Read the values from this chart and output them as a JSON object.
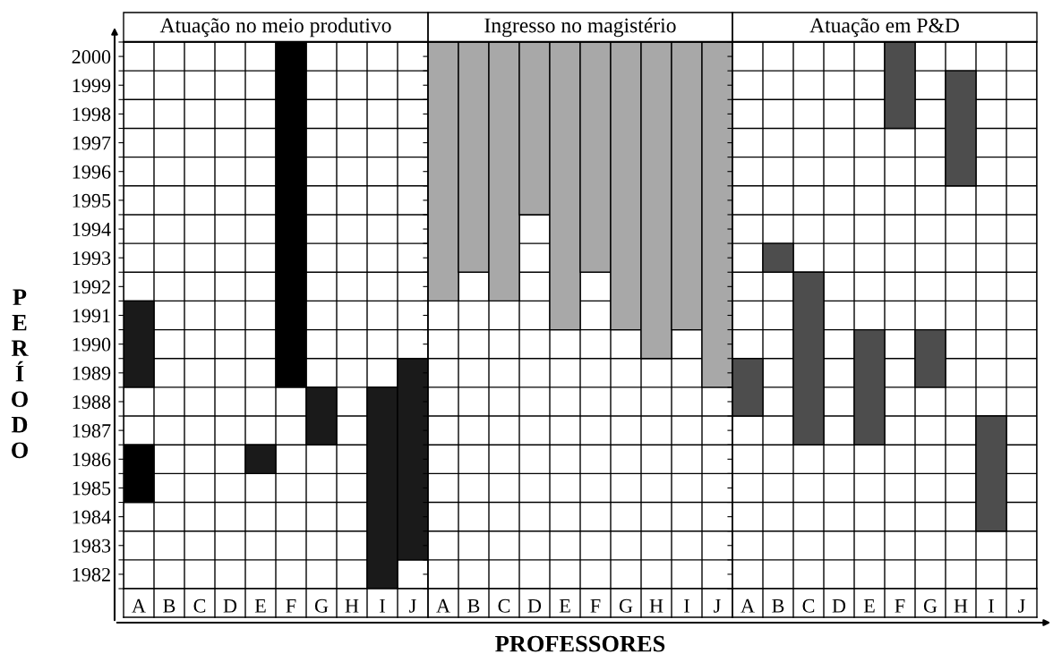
{
  "chart_data": [
    {
      "type": "bar",
      "title": "Atuação no meio produtivo",
      "ylabel": "PERÍODO",
      "categories": [
        "A",
        "B",
        "C",
        "D",
        "E",
        "F",
        "G",
        "H",
        "I",
        "J"
      ],
      "ylim": [
        1981.5,
        2000.5
      ],
      "grid": true,
      "yticks": [
        {
          "value": 1981.5,
          "label": null
        },
        1982,
        {
          "value": 1982.5,
          "label": null
        },
        1983,
        {
          "value": 1983.5,
          "label": null
        },
        1984,
        {
          "value": 1984.5,
          "label": null
        },
        1985,
        {
          "value": 1985.5,
          "label": null
        },
        1986,
        {
          "value": 1986.5,
          "label": null
        },
        1987,
        {
          "value": 1987.5,
          "label": null
        },
        1988,
        {
          "value": 1988.5,
          "label": null
        },
        1989,
        {
          "value": 1989.5,
          "label": null
        },
        1990,
        {
          "value": 1990.5,
          "label": null
        },
        1991,
        {
          "value": 1991.5,
          "label": null
        },
        1992,
        {
          "value": 1992.5,
          "label": null
        },
        1993,
        {
          "value": 1993.5,
          "label": null
        },
        1994,
        {
          "value": 1994.5,
          "label": null
        },
        1995,
        {
          "value": 1995.5,
          "label": null
        },
        1996,
        {
          "value": 1996.5,
          "label": null
        },
        1997,
        {
          "value": 1997.5,
          "label": null
        },
        1998,
        {
          "value": 1998.5,
          "label": null
        },
        1999,
        {
          "value": 1999.5,
          "label": null
        },
        2000,
        {
          "value": 2000.5,
          "label": null
        }
      ],
      "series": [
        {
          "base": [
            1984.5,
            null,
            null,
            null,
            1985.5,
            1988.5,
            1986.5,
            null,
            1981.5,
            1982.5
          ],
          "values": [
            2,
            null,
            null,
            null,
            1,
            12,
            2,
            null,
            7,
            7
          ],
          "colors": [
            "#000000",
            null,
            null,
            null,
            "#1a1a1a",
            "#000000",
            "#1a1a1a",
            null,
            "#1a1a1a",
            "#1a1a1a"
          ]
        },
        {
          "base": [
            1988.5,
            null,
            null,
            null,
            null,
            null,
            null,
            null,
            null,
            null
          ],
          "values": [
            3,
            null,
            null,
            null,
            null,
            null,
            null,
            null,
            null,
            null
          ],
          "colors": [
            "#1a1a1a",
            null,
            null,
            null,
            null,
            null,
            null,
            null,
            null,
            null
          ]
        }
      ]
    },
    {
      "type": "bar",
      "title": "Ingresso no magistério",
      "xlabel": "PROFESSORES",
      "categories": [
        "A",
        "B",
        "C",
        "D",
        "E",
        "F",
        "G",
        "H",
        "I",
        "J"
      ],
      "ylim": [
        1981.5,
        2000.5
      ],
      "grid": true,
      "tick_labels": "x",
      "yticks": [
        {
          "value": 1981.5,
          "label": null
        },
        1982,
        {
          "value": 1982.5,
          "label": null
        },
        1983,
        {
          "value": 1983.5,
          "label": null
        },
        1984,
        {
          "value": 1984.5,
          "label": null
        },
        1985,
        {
          "value": 1985.5,
          "label": null
        },
        1986,
        {
          "value": 1986.5,
          "label": null
        },
        1987,
        {
          "value": 1987.5,
          "label": null
        },
        1988,
        {
          "value": 1988.5,
          "label": null
        },
        1989,
        {
          "value": 1989.5,
          "label": null
        },
        1990,
        {
          "value": 1990.5,
          "label": null
        },
        1991,
        {
          "value": 1991.5,
          "label": null
        },
        1992,
        {
          "value": 1992.5,
          "label": null
        },
        1993,
        {
          "value": 1993.5,
          "label": null
        },
        1994,
        {
          "value": 1994.5,
          "label": null
        },
        1995,
        {
          "value": 1995.5,
          "label": null
        },
        1996,
        {
          "value": 1996.5,
          "label": null
        },
        1997,
        {
          "value": 1997.5,
          "label": null
        },
        1998,
        {
          "value": 1998.5,
          "label": null
        },
        1999,
        {
          "value": 1999.5,
          "label": null
        },
        2000,
        {
          "value": 2000.5,
          "label": null
        }
      ],
      "series": [
        {
          "base": [
            1991.5,
            1992.5,
            1991.5,
            1994.5,
            1990.5,
            1992.5,
            1990.5,
            1989.5,
            1990.5,
            1988.5
          ],
          "values": [
            9,
            8,
            9,
            6,
            10,
            8,
            10,
            11,
            10,
            12
          ],
          "color": "#a8a8a8"
        }
      ]
    },
    {
      "type": "bar",
      "title": "Atuação em P&D",
      "categories": [
        "A",
        "B",
        "C",
        "D",
        "E",
        "F",
        "G",
        "H",
        "I",
        "J"
      ],
      "ylim": [
        1981.5,
        2000.5
      ],
      "grid": true,
      "tick_labels": "x",
      "yticks": [
        {
          "value": 1981.5,
          "label": null
        },
        1982,
        {
          "value": 1982.5,
          "label": null
        },
        1983,
        {
          "value": 1983.5,
          "label": null
        },
        1984,
        {
          "value": 1984.5,
          "label": null
        },
        1985,
        {
          "value": 1985.5,
          "label": null
        },
        1986,
        {
          "value": 1986.5,
          "label": null
        },
        1987,
        {
          "value": 1987.5,
          "label": null
        },
        1988,
        {
          "value": 1988.5,
          "label": null
        },
        1989,
        {
          "value": 1989.5,
          "label": null
        },
        1990,
        {
          "value": 1990.5,
          "label": null
        },
        1991,
        {
          "value": 1991.5,
          "label": null
        },
        1992,
        {
          "value": 1992.5,
          "label": null
        },
        1993,
        {
          "value": 1993.5,
          "label": null
        },
        1994,
        {
          "value": 1994.5,
          "label": null
        },
        1995,
        {
          "value": 1995.5,
          "label": null
        },
        1996,
        {
          "value": 1996.5,
          "label": null
        },
        1997,
        {
          "value": 1997.5,
          "label": null
        },
        1998,
        {
          "value": 1998.5,
          "label": null
        },
        1999,
        {
          "value": 1999.5,
          "label": null
        },
        2000,
        {
          "value": 2000.5,
          "label": null
        }
      ],
      "series": [
        {
          "base": [
            1987.5,
            1992.5,
            1986.5,
            null,
            1986.5,
            1997.5,
            1988.5,
            1995.5,
            1983.5,
            null
          ],
          "values": [
            2,
            1,
            6,
            null,
            4,
            3,
            2,
            4,
            4,
            null
          ],
          "color": "#4d4d4d"
        }
      ]
    }
  ]
}
